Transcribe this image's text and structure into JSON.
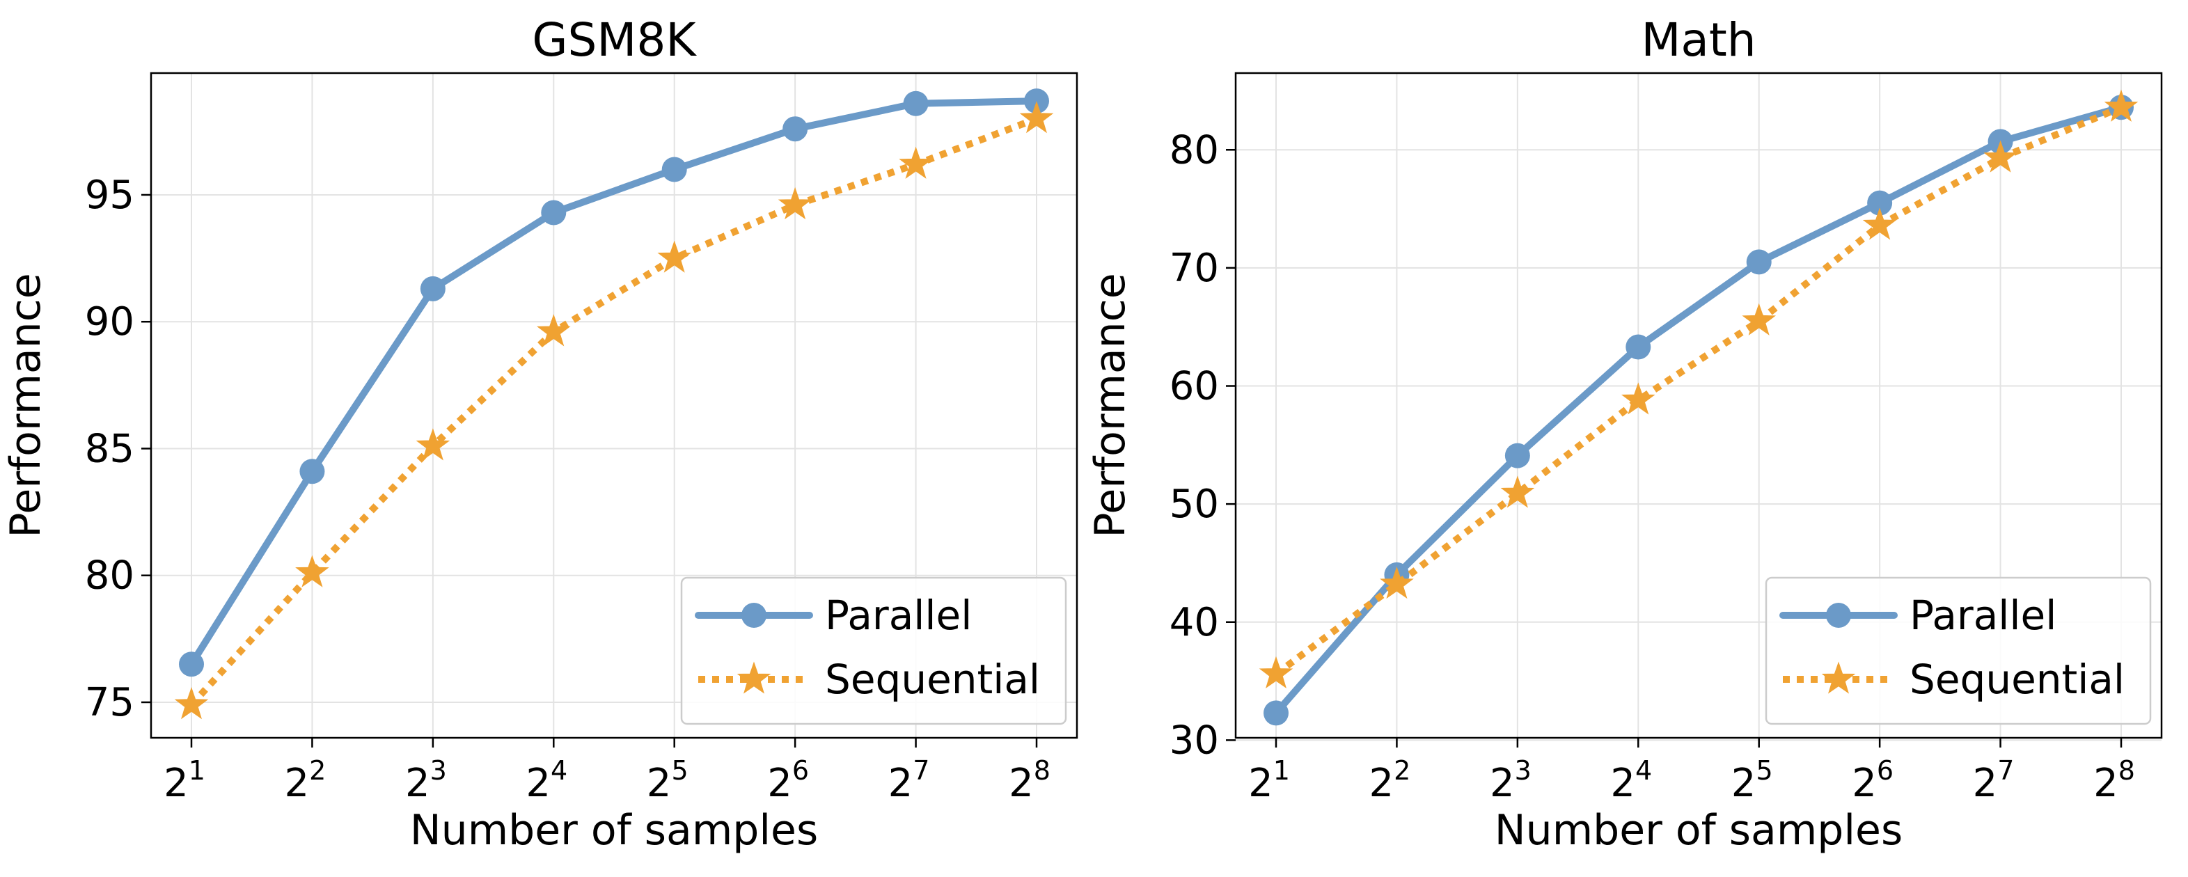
{
  "chart_data": [
    {
      "type": "line",
      "title": "GSM8K",
      "xlabel": "Number of samples",
      "ylabel": "Performance",
      "x_base": "2",
      "x_exponents": [
        "1",
        "2",
        "3",
        "4",
        "5",
        "6",
        "7",
        "8"
      ],
      "ylim": [
        73.6,
        99.8
      ],
      "yticks": [
        75,
        80,
        85,
        90,
        95
      ],
      "grid": true,
      "legend_position": "bottom-right",
      "series": [
        {
          "name": "Parallel",
          "color": "#6b9ac8",
          "marker": "circle",
          "line_style": "solid",
          "values": [
            76.5,
            84.1,
            91.3,
            94.3,
            96.0,
            97.6,
            98.6,
            98.7
          ]
        },
        {
          "name": "Sequential",
          "color": "#f0a232",
          "marker": "star",
          "line_style": "dotted",
          "values": [
            74.9,
            80.1,
            85.1,
            89.6,
            92.5,
            94.6,
            96.2,
            98.0
          ]
        }
      ]
    },
    {
      "type": "line",
      "title": "Math",
      "xlabel": "Number of samples",
      "ylabel": "Performance",
      "x_base": "2",
      "x_exponents": [
        "1",
        "2",
        "3",
        "4",
        "5",
        "6",
        "7",
        "8"
      ],
      "ylim": [
        30.2,
        86.5
      ],
      "yticks": [
        30,
        40,
        50,
        60,
        70,
        80
      ],
      "grid": true,
      "legend_position": "bottom-right",
      "series": [
        {
          "name": "Parallel",
          "color": "#6b9ac8",
          "marker": "circle",
          "line_style": "solid",
          "values": [
            32.3,
            44.0,
            54.1,
            63.3,
            70.5,
            75.5,
            80.7,
            83.6
          ]
        },
        {
          "name": "Sequential",
          "color": "#f0a232",
          "marker": "star",
          "line_style": "dotted",
          "values": [
            35.6,
            43.2,
            50.9,
            58.8,
            65.5,
            73.6,
            79.3,
            83.6
          ]
        }
      ]
    }
  ]
}
